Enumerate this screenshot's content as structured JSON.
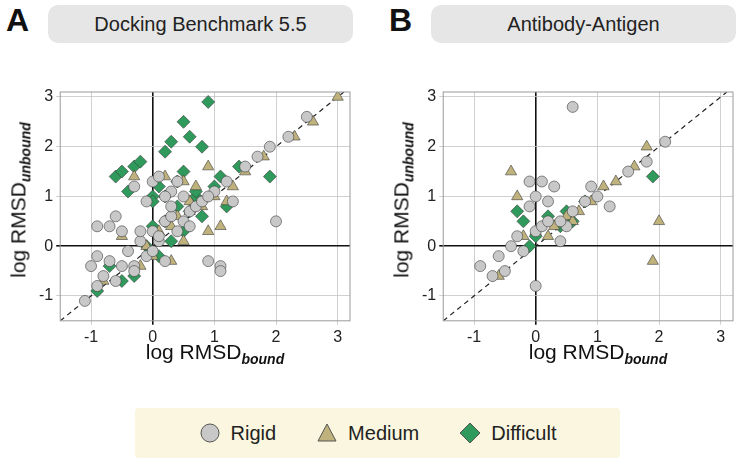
{
  "chart_data": [
    {
      "type": "scatter",
      "panel_label": "A",
      "title": "Docking Benchmark 5.5",
      "x_label": "log RMSD",
      "x_label_subscript": "bound",
      "y_label": "log RMSD",
      "y_label_subscript": "unbound",
      "xlim": [
        -1.5,
        3.2
      ],
      "ylim": [
        -1.5,
        3.1
      ],
      "xticks": [
        -1,
        0,
        1,
        2,
        3
      ],
      "yticks": [
        -1,
        0,
        1,
        2,
        3
      ],
      "grid": true,
      "legend": "bottom",
      "series": [
        {
          "name": "Rigid",
          "color": "#c8c8c8",
          "marker": "circle",
          "x": [
            -1.1,
            -1.0,
            -0.9,
            -0.9,
            -0.8,
            -0.7,
            -0.7,
            -0.6,
            -0.5,
            -0.5,
            -0.4,
            -0.3,
            -0.3,
            -0.2,
            -0.1,
            -0.1,
            0.0,
            0.0,
            0.1,
            0.1,
            0.2,
            0.2,
            0.3,
            0.3,
            0.4,
            0.4,
            0.5,
            0.5,
            0.6,
            0.7,
            0.8,
            0.9,
            1.0,
            1.1,
            1.2,
            1.3,
            1.5,
            1.7,
            1.9,
            2.0,
            2.2,
            2.5,
            -0.9,
            -0.6,
            -0.3,
            0.1,
            0.3,
            0.6,
            0.9,
            1.1,
            -0.2,
            0.0,
            0.2
          ],
          "values": [
            -1.1,
            -0.4,
            -0.8,
            0.4,
            -0.6,
            -0.3,
            0.4,
            -0.7,
            -0.4,
            0.3,
            -0.1,
            -0.4,
            1.2,
            0.1,
            -0.2,
            0.9,
            0.3,
            1.3,
            0.1,
            1.4,
            0.5,
            -0.3,
            0.6,
            1.1,
            0.3,
            1.3,
            0.5,
            1.0,
            0.7,
            0.8,
            0.9,
            -0.3,
            1.1,
            -0.4,
            1.3,
            0.9,
            1.6,
            1.8,
            2.0,
            0.5,
            2.2,
            2.6,
            -0.2,
            0.6,
            -0.5,
            0.2,
            0.8,
            0.4,
            1.0,
            -0.5,
            0.3,
            -0.1,
            1.0
          ]
        },
        {
          "name": "Medium",
          "color": "#bfb27c",
          "marker": "triangle",
          "x": [
            -0.8,
            -0.5,
            -0.3,
            -0.1,
            0.0,
            0.1,
            0.2,
            0.3,
            0.4,
            0.5,
            0.6,
            0.7,
            0.8,
            0.9,
            1.0,
            1.1,
            1.3,
            1.5,
            1.8,
            2.3,
            2.6,
            3.0,
            0.3,
            0.6,
            -0.2,
            0.5,
            0.9,
            1.2
          ],
          "values": [
            -0.7,
            0.2,
            1.4,
            0.0,
            -0.2,
            0.3,
            1.4,
            0.4,
            0.6,
            0.1,
            0.9,
            1.2,
            0.8,
            1.6,
            1.0,
            0.4,
            1.2,
            1.5,
            1.8,
            2.2,
            2.5,
            3.0,
            -0.3,
            0.7,
            -0.4,
            1.3,
            0.3,
            0.9
          ]
        },
        {
          "name": "Difficult",
          "color": "#2f9a5c",
          "marker": "diamond",
          "x": [
            -0.9,
            -0.7,
            -0.6,
            -0.5,
            -0.4,
            -0.3,
            -0.2,
            -0.1,
            0.0,
            0.0,
            0.1,
            0.1,
            0.2,
            0.2,
            0.3,
            0.3,
            0.4,
            0.4,
            0.5,
            0.5,
            0.6,
            0.6,
            0.7,
            0.8,
            0.8,
            0.9,
            1.0,
            1.1,
            1.2,
            0.5,
            -0.3,
            -0.5,
            0.3,
            0.7,
            1.4,
            1.9,
            0.0,
            0.2
          ],
          "values": [
            -0.9,
            -0.4,
            1.4,
            1.5,
            1.1,
            1.6,
            1.7,
            0.0,
            0.4,
            1.0,
            1.2,
            -0.2,
            0.5,
            1.9,
            0.6,
            2.1,
            0.8,
            1.3,
            0.3,
            1.5,
            0.7,
            2.2,
            1.0,
            0.6,
            2.0,
            2.9,
            1.2,
            1.4,
            0.8,
            2.5,
            -0.6,
            -0.7,
            0.1,
            1.1,
            1.6,
            1.4,
            0.9,
            1.0
          ]
        }
      ]
    },
    {
      "type": "scatter",
      "panel_label": "B",
      "title": "Antibody-Antigen",
      "x_label": "log RMSD",
      "x_label_subscript": "bound",
      "y_label": "log RMSD",
      "y_label_subscript": "unbound",
      "xlim": [
        -1.5,
        3.2
      ],
      "ylim": [
        -1.5,
        3.1
      ],
      "xticks": [
        -1,
        0,
        1,
        2,
        3
      ],
      "yticks": [
        -1,
        0,
        1,
        2,
        3
      ],
      "grid": true,
      "legend": "bottom",
      "series": [
        {
          "name": "Rigid",
          "color": "#c8c8c8",
          "marker": "circle",
          "x": [
            -0.9,
            -0.7,
            -0.6,
            -0.5,
            -0.4,
            -0.3,
            -0.2,
            -0.1,
            0.0,
            0.0,
            0.1,
            0.1,
            0.2,
            0.3,
            0.4,
            0.5,
            0.6,
            0.8,
            1.0,
            1.2,
            1.5,
            1.8,
            2.1,
            0.6,
            -0.1,
            0.0,
            0.2,
            0.4,
            0.9
          ],
          "values": [
            -0.4,
            -0.6,
            -0.2,
            -0.5,
            0.0,
            0.2,
            -0.1,
            1.3,
            -0.8,
            0.3,
            0.4,
            1.3,
            0.5,
            1.2,
            0.1,
            0.4,
            2.8,
            0.9,
            1.0,
            0.8,
            1.5,
            1.7,
            2.1,
            0.7,
            0.8,
            1.0,
            0.9,
            0.5,
            1.2
          ]
        },
        {
          "name": "Medium",
          "color": "#bfb27c",
          "marker": "triangle",
          "x": [
            -0.6,
            -0.4,
            -0.2,
            0.0,
            0.2,
            0.3,
            0.5,
            0.7,
            0.9,
            1.1,
            1.3,
            1.6,
            1.8,
            2.0,
            -0.3,
            0.6,
            1.9
          ],
          "values": [
            -0.6,
            1.5,
            0.2,
            0.3,
            0.2,
            0.4,
            0.6,
            0.7,
            0.9,
            1.2,
            1.3,
            1.6,
            2.0,
            0.5,
            1.0,
            0.5,
            -0.3
          ]
        },
        {
          "name": "Difficult",
          "color": "#2f9a5c",
          "marker": "diamond",
          "x": [
            -0.3,
            -0.2,
            0.0,
            0.2,
            0.4,
            0.6,
            0.8,
            1.9,
            -0.1,
            0.5
          ],
          "values": [
            0.7,
            0.5,
            0.2,
            0.6,
            0.4,
            0.5,
            0.9,
            1.4,
            0.0,
            0.7
          ]
        }
      ]
    }
  ]
}
